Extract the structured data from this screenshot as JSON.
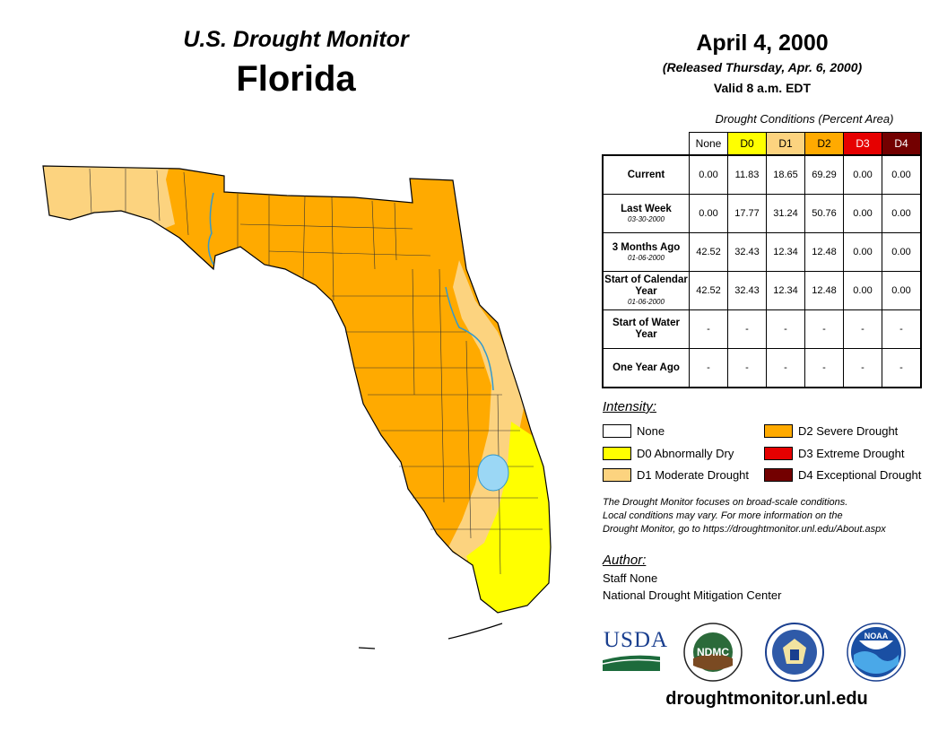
{
  "header": {
    "monitor_title": "U.S. Drought Monitor",
    "state_title": "Florida",
    "date": "April 4, 2000",
    "released": "(Released Thursday, Apr. 6, 2000)",
    "valid": "Valid 8 a.m. EDT"
  },
  "table": {
    "caption": "Drought Conditions (Percent Area)",
    "columns": [
      {
        "label": "None",
        "bg": "#ffffff",
        "fg": "#000000"
      },
      {
        "label": "D0",
        "bg": "#ffff00",
        "fg": "#000000"
      },
      {
        "label": "D1",
        "bg": "#fcd37f",
        "fg": "#000000"
      },
      {
        "label": "D2",
        "bg": "#ffaa00",
        "fg": "#000000"
      },
      {
        "label": "D3",
        "bg": "#e60000",
        "fg": "#ffffff"
      },
      {
        "label": "D4",
        "bg": "#730000",
        "fg": "#ffffff"
      }
    ],
    "rows": [
      {
        "label": "Current",
        "sub": "",
        "values": [
          "0.00",
          "11.83",
          "18.65",
          "69.29",
          "0.00",
          "0.00"
        ]
      },
      {
        "label": "Last Week",
        "sub": "03-30-2000",
        "values": [
          "0.00",
          "17.77",
          "31.24",
          "50.76",
          "0.00",
          "0.00"
        ]
      },
      {
        "label": "3 Months Ago",
        "sub": "01-06-2000",
        "values": [
          "42.52",
          "32.43",
          "12.34",
          "12.48",
          "0.00",
          "0.00"
        ]
      },
      {
        "label": "Start of Calendar Year",
        "sub": "01-06-2000",
        "values": [
          "42.52",
          "32.43",
          "12.34",
          "12.48",
          "0.00",
          "0.00"
        ]
      },
      {
        "label": "Start of Water Year",
        "sub": "",
        "values": [
          "-",
          "-",
          "-",
          "-",
          "-",
          "-"
        ]
      },
      {
        "label": "One Year Ago",
        "sub": "",
        "values": [
          "-",
          "-",
          "-",
          "-",
          "-",
          "-"
        ]
      }
    ]
  },
  "legend": {
    "heading": "Intensity:",
    "items": [
      {
        "label": "None",
        "color": "#ffffff"
      },
      {
        "label": "D0 Abnormally Dry",
        "color": "#ffff00"
      },
      {
        "label": "D1 Moderate Drought",
        "color": "#fcd37f"
      },
      {
        "label": "D2 Severe Drought",
        "color": "#ffaa00"
      },
      {
        "label": "D3 Extreme Drought",
        "color": "#e60000"
      },
      {
        "label": "D4 Exceptional Drought",
        "color": "#730000"
      }
    ]
  },
  "disclaimer": {
    "line1": "The Drought Monitor focuses on broad-scale conditions.",
    "line2": "Local conditions may vary. For more information on the",
    "line3": "Drought Monitor, go to https://droughtmonitor.unl.edu/About.aspx"
  },
  "author": {
    "heading": "Author:",
    "name": "Staff None",
    "org": "National Drought Mitigation Center"
  },
  "logos": {
    "usda": "USDA",
    "ndmc": "NDMC",
    "noaa": "NOAA"
  },
  "website": "droughtmonitor.unl.edu",
  "map_colors": {
    "d0": "#ffff00",
    "d1": "#fcd37f",
    "d2": "#ffaa00",
    "water": "#9bd7f5",
    "river": "#3399cc"
  }
}
